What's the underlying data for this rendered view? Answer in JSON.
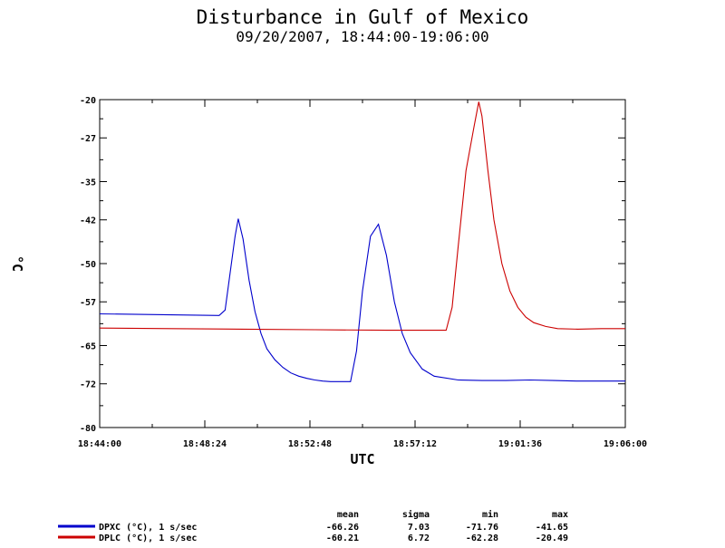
{
  "chart_data": {
    "type": "line",
    "title": "Disturbance in Gulf of Mexico",
    "subtitle": "09/20/2007, 18:44:00-19:06:00",
    "xlabel": "UTC",
    "ylabel": "°C",
    "ylim": [
      -80,
      -20
    ],
    "xlim": [
      "18:44:00",
      "19:06:00"
    ],
    "y_ticks": [
      -20,
      -27,
      -35,
      -42,
      -50,
      -57,
      -65,
      -72,
      -80
    ],
    "x_ticks": [
      "18:44:00",
      "18:48:24",
      "18:52:48",
      "18:57:12",
      "19:01:36",
      "19:06:00"
    ],
    "grid": false,
    "stats_headers": [
      "mean",
      "sigma",
      "min",
      "max"
    ],
    "series": [
      {
        "name": "DPXC (°C), 1 s/sec",
        "color": "#0000cc",
        "stats": [
          "-66.26",
          "7.03",
          "-71.76",
          "-41.65"
        ],
        "x": [
          "18:44:00",
          "18:49:00",
          "18:49:15",
          "18:49:40",
          "18:49:48",
          "18:50:00",
          "18:50:15",
          "18:50:30",
          "18:50:45",
          "18:51:00",
          "18:51:20",
          "18:51:40",
          "18:52:00",
          "18:52:20",
          "18:52:40",
          "18:53:00",
          "18:53:20",
          "18:53:40",
          "18:54:00",
          "18:54:30",
          "18:54:45",
          "18:55:00",
          "18:55:20",
          "18:55:40",
          "18:56:00",
          "18:56:20",
          "18:56:40",
          "18:57:00",
          "18:57:30",
          "18:58:00",
          "18:59:00",
          "19:00:00",
          "19:01:00",
          "19:02:00",
          "19:03:00",
          "19:04:00",
          "19:05:00",
          "19:06:00"
        ],
        "y": [
          -59.2,
          -59.5,
          -58.5,
          -45.0,
          -41.8,
          -45.5,
          -53.0,
          -58.8,
          -62.8,
          -65.6,
          -67.6,
          -69.0,
          -70.0,
          -70.6,
          -71.0,
          -71.3,
          -71.5,
          -71.6,
          -71.6,
          -71.6,
          -66.0,
          -55.0,
          -45.0,
          -42.8,
          -48.5,
          -57.0,
          -62.8,
          -66.3,
          -69.3,
          -70.6,
          -71.3,
          -71.4,
          -71.4,
          -71.3,
          -71.4,
          -71.5,
          -71.5,
          -71.5
        ]
      },
      {
        "name": "DPLC (°C), 1 s/sec",
        "color": "#cc0000",
        "stats": [
          "-60.21",
          "6.72",
          "-62.28",
          "-20.49"
        ],
        "x": [
          "18:44:00",
          "18:47:00",
          "18:50:00",
          "18:53:00",
          "18:56:00",
          "18:58:30",
          "18:58:45",
          "18:59:00",
          "18:59:20",
          "18:59:40",
          "18:59:52",
          "19:00:00",
          "19:00:15",
          "19:00:30",
          "19:00:50",
          "19:01:10",
          "19:01:30",
          "19:01:50",
          "19:02:10",
          "19:02:40",
          "19:03:10",
          "19:04:00",
          "19:05:00",
          "19:06:00"
        ],
        "y": [
          -61.8,
          -61.9,
          -62.0,
          -62.1,
          -62.2,
          -62.2,
          -58.0,
          -47.0,
          -33.0,
          -25.0,
          -20.4,
          -23.0,
          -33.0,
          -42.0,
          -50.0,
          -55.0,
          -58.0,
          -59.8,
          -60.8,
          -61.5,
          -61.9,
          -62.0,
          -61.9,
          -61.9
        ]
      }
    ]
  }
}
